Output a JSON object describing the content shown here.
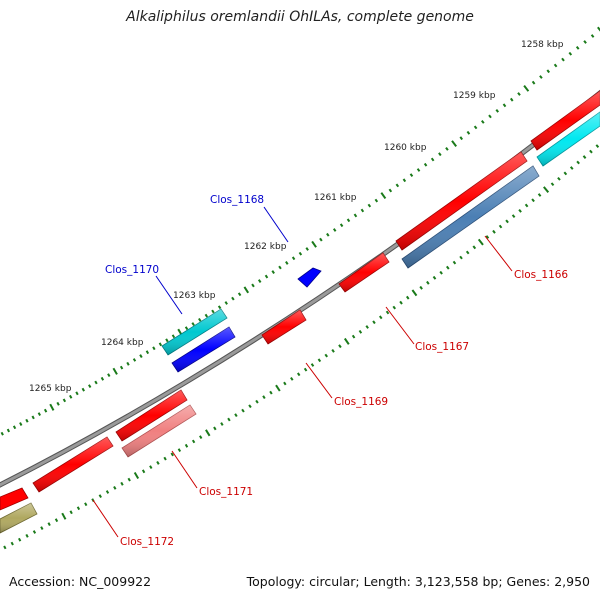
{
  "title": "Alkaliphilus oremlandii OhILAs, complete genome",
  "accession": "Accession: NC_009922",
  "summary": "Topology: circular; Length: 3,123,558 bp; Genes: 2,950",
  "colors": {
    "backbone": "#808080",
    "tick": "#1a7a1a",
    "red": "#ff0000",
    "blue": "#0000ff",
    "cyan": "#00c8d0",
    "steel": "#4b7fb4",
    "pink": "#f08080",
    "olive": "#b0a860",
    "label_blue": "#0000cc",
    "label_red": "#cc0000"
  },
  "ticks": [
    {
      "label": "1258 kbp"
    },
    {
      "label": "1259 kbp"
    },
    {
      "label": "1260 kbp"
    },
    {
      "label": "1261 kbp"
    },
    {
      "label": "1262 kbp"
    },
    {
      "label": "1263 kbp"
    },
    {
      "label": "1264 kbp"
    },
    {
      "label": "1265 kbp"
    }
  ],
  "genes": [
    {
      "label": "Clos_1166",
      "color": "steel"
    },
    {
      "label": "Clos_1167",
      "color": "red"
    },
    {
      "label": "Clos_1168",
      "color": "blue"
    },
    {
      "label": "Clos_1169",
      "color": "red"
    },
    {
      "label": "Clos_1170",
      "color": "cyan"
    },
    {
      "label": "Clos_1171",
      "color": "pink"
    },
    {
      "label": "Clos_1172",
      "color": "red"
    }
  ]
}
